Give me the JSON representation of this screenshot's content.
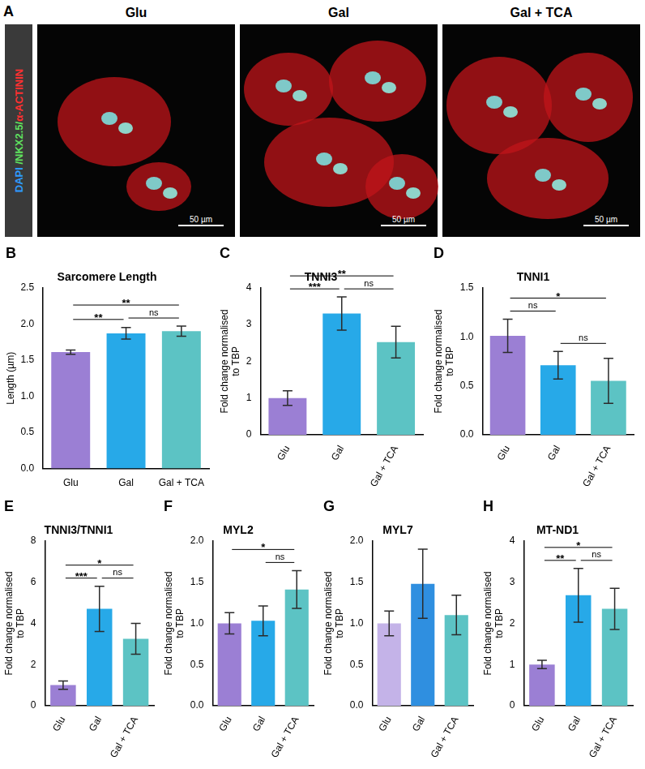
{
  "panel_a": {
    "letter": "A",
    "stain_label": [
      {
        "text": "DAPI",
        "color": "#2e9bff"
      },
      {
        "text": " /NKX2.5/",
        "color": "#5fe05f"
      },
      {
        "text": "α-ACTININ",
        "color": "#ff3030"
      }
    ],
    "images": [
      {
        "title": "Glu",
        "scale_bar": "50 µm"
      },
      {
        "title": "Gal",
        "scale_bar": "50 µm"
      },
      {
        "title": "Gal + TCA",
        "scale_bar": "50 µm"
      }
    ]
  },
  "chart_data": [
    {
      "panel": "B",
      "type": "bar",
      "title": "Sarcomere Length",
      "y_label": "Length (µm)",
      "categories": [
        "Glu",
        "Gal",
        "Gal + TCA"
      ],
      "values": [
        1.61,
        1.87,
        1.9
      ],
      "errors": [
        0.03,
        0.08,
        0.07
      ],
      "colors": [
        "#9b7fd4",
        "#27a9e8",
        "#5cc3c4"
      ],
      "grid": false,
      "ylim": [
        0,
        2.5
      ],
      "yticks": [
        {
          "value": 0,
          "label": "0.0"
        },
        {
          "value": 0.5,
          "label": "0.5"
        },
        {
          "value": 1,
          "label": "1.0"
        },
        {
          "value": 1.5,
          "label": "1.5"
        },
        {
          "value": 2,
          "label": "2.0"
        },
        {
          "value": 2.5,
          "label": "2.5"
        }
      ],
      "significance": [
        {
          "from": "Glu",
          "to": "Gal",
          "label": "**"
        },
        {
          "from": "Gal",
          "to": "Gal + TCA",
          "label": "ns"
        },
        {
          "from": "Glu",
          "to": "Gal + TCA",
          "label": "**"
        }
      ]
    },
    {
      "panel": "C",
      "type": "bar",
      "title": "TNNI3",
      "y_label": "Fold change normalised to TBP",
      "categories": [
        "Glu",
        "Gal",
        "Gal + TCA"
      ],
      "values": [
        1.0,
        3.3,
        2.52
      ],
      "errors": [
        0.2,
        0.45,
        0.43
      ],
      "colors": [
        "#9b7fd4",
        "#27a9e8",
        "#5cc3c4"
      ],
      "grid": false,
      "ylim": [
        0,
        4
      ],
      "yticks": [
        0,
        1,
        2,
        3,
        4
      ],
      "significance": [
        {
          "from": "Glu",
          "to": "Gal",
          "label": "***"
        },
        {
          "from": "Gal",
          "to": "Gal + TCA",
          "label": "ns"
        },
        {
          "from": "Glu",
          "to": "Gal + TCA",
          "label": "**"
        }
      ]
    },
    {
      "panel": "D",
      "type": "bar",
      "title": "TNNI1",
      "y_label": "Fold change normalised to TBP",
      "categories": [
        "Glu",
        "Gal",
        "Gal + TCA"
      ],
      "values": [
        1.01,
        0.71,
        0.55
      ],
      "errors": [
        0.17,
        0.14,
        0.23
      ],
      "colors": [
        "#9b7fd4",
        "#27a9e8",
        "#5cc3c4"
      ],
      "grid": false,
      "ylim": [
        0,
        1.5
      ],
      "yticks": [
        {
          "value": 0,
          "label": "0.0"
        },
        {
          "value": 0.5,
          "label": "0.5"
        },
        {
          "value": 1,
          "label": "1.0"
        },
        {
          "value": 1.5,
          "label": "1.5"
        }
      ],
      "significance": [
        {
          "from": "Glu",
          "to": "Gal",
          "label": "ns"
        },
        {
          "from": "Gal",
          "to": "Gal + TCA",
          "label": "ns"
        },
        {
          "from": "Glu",
          "to": "Gal + TCA",
          "label": "*"
        }
      ]
    },
    {
      "panel": "E",
      "type": "bar",
      "title": "TNNI3/TNNI1",
      "y_label": "Fold change normalised to TBP",
      "categories": [
        "Glu",
        "Gal",
        "Gal + TCA"
      ],
      "values": [
        1.0,
        4.7,
        3.25
      ],
      "errors": [
        0.2,
        1.1,
        0.75
      ],
      "colors": [
        "#9b7fd4",
        "#27a9e8",
        "#5cc3c4"
      ],
      "grid": false,
      "ylim": [
        0,
        8
      ],
      "yticks": [
        0,
        2,
        4,
        6,
        8
      ],
      "significance": [
        {
          "from": "Glu",
          "to": "Gal",
          "label": "***"
        },
        {
          "from": "Gal",
          "to": "Gal + TCA",
          "label": "ns"
        },
        {
          "from": "Glu",
          "to": "Gal + TCA",
          "label": "*"
        }
      ]
    },
    {
      "panel": "F",
      "type": "bar",
      "title": "MYL2",
      "y_label": "Fold change normalised to TBP",
      "categories": [
        "Glu",
        "Gal",
        "Gal + TCA"
      ],
      "values": [
        1.0,
        1.03,
        1.41
      ],
      "errors": [
        0.13,
        0.18,
        0.23
      ],
      "colors": [
        "#9b7fd4",
        "#27a9e8",
        "#5cc3c4"
      ],
      "grid": false,
      "ylim": [
        0,
        2
      ],
      "yticks": [
        {
          "value": 0,
          "label": "0.0"
        },
        {
          "value": 0.5,
          "label": "0.5"
        },
        {
          "value": 1,
          "label": "1.0"
        },
        {
          "value": 1.5,
          "label": "1.5"
        },
        {
          "value": 2,
          "label": "2.0"
        }
      ],
      "significance": [
        {
          "from": "Gal",
          "to": "Gal + TCA",
          "label": "ns"
        },
        {
          "from": "Glu",
          "to": "Gal + TCA",
          "label": "*"
        }
      ]
    },
    {
      "panel": "G",
      "type": "bar",
      "title": "MYL7",
      "y_label": "Fold change normalised to TBP",
      "categories": [
        "Glu",
        "Gal",
        "Gal + TCA"
      ],
      "values": [
        1.0,
        1.48,
        1.1
      ],
      "errors": [
        0.15,
        0.42,
        0.24
      ],
      "colors": [
        "#c4b3e8",
        "#2f8fe0",
        "#5cc3c4"
      ],
      "grid": false,
      "ylim": [
        0,
        2
      ],
      "yticks": [
        {
          "value": 0,
          "label": "0.0"
        },
        {
          "value": 0.5,
          "label": "0.5"
        },
        {
          "value": 1,
          "label": "1.0"
        },
        {
          "value": 1.5,
          "label": "1.5"
        },
        {
          "value": 2,
          "label": "2.0"
        }
      ],
      "significance": []
    },
    {
      "panel": "H",
      "type": "bar",
      "title": "MT-ND1",
      "y_label": "Fold change normalised to TBP",
      "categories": [
        "Glu",
        "Gal",
        "Gal + TCA"
      ],
      "values": [
        1.0,
        2.68,
        2.35
      ],
      "errors": [
        0.1,
        0.65,
        0.5
      ],
      "colors": [
        "#9b7fd4",
        "#27a9e8",
        "#5cc3c4"
      ],
      "grid": false,
      "ylim": [
        0,
        4
      ],
      "yticks": [
        0,
        1,
        2,
        3,
        4
      ],
      "significance": [
        {
          "from": "Glu",
          "to": "Gal",
          "label": "**"
        },
        {
          "from": "Gal",
          "to": "Gal + TCA",
          "label": "ns"
        },
        {
          "from": "Glu",
          "to": "Gal + TCA",
          "label": "*"
        }
      ]
    }
  ]
}
